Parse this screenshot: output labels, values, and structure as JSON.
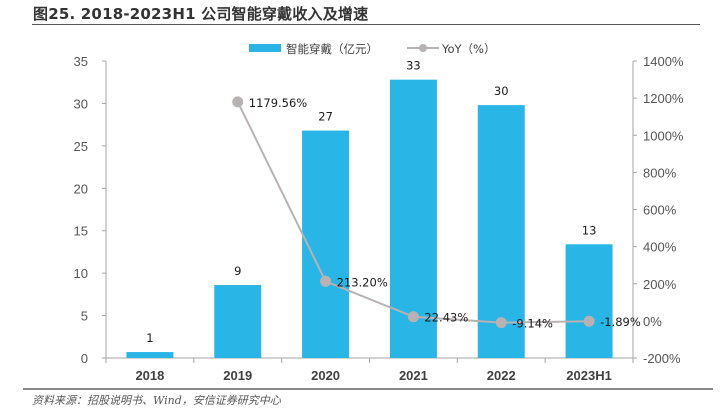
{
  "title": "图25. 2018-2023H1 公司智能穿戴收入及增速",
  "source": "资料来源：招股说明书、Wind，安信证券研究中心",
  "colors": {
    "bar": "#29B6E6",
    "line": "#B8B2B2",
    "axis": "#A6A6A6"
  },
  "chart_data": {
    "type": "bar",
    "title": "2018-2023H1 公司智能穿戴收入及增速",
    "categories": [
      "2018",
      "2019",
      "2020",
      "2021",
      "2022",
      "2023H1"
    ],
    "series": [
      {
        "name": "智能穿戴（亿元）",
        "type": "bar",
        "axis": "left",
        "values": [
          0.7,
          8.6,
          26.8,
          32.8,
          29.8,
          13.4
        ],
        "labels": [
          "1",
          "9",
          "27",
          "33",
          "30",
          "13"
        ]
      },
      {
        "name": "YoY（%）",
        "type": "line",
        "axis": "right",
        "values": [
          null,
          1179.56,
          213.2,
          22.43,
          -9.14,
          -1.89
        ],
        "labels": [
          "",
          "1179.56%",
          "213.20%",
          "22.43%",
          "-9.14%",
          "-1.89%"
        ]
      }
    ],
    "left_axis": {
      "ylim": [
        0,
        35
      ],
      "ticks": [
        0,
        5,
        10,
        15,
        20,
        25,
        30,
        35
      ],
      "tick_labels": [
        "0",
        "5",
        "10",
        "15",
        "20",
        "25",
        "30",
        "35"
      ]
    },
    "right_axis": {
      "ylim": [
        -200,
        1400
      ],
      "ticks": [
        -200,
        0,
        200,
        400,
        600,
        800,
        1000,
        1200,
        1400
      ],
      "tick_labels": [
        "-200%",
        "0%",
        "200%",
        "400%",
        "600%",
        "800%",
        "1000%",
        "1200%",
        "1400%"
      ]
    },
    "xlabel": "",
    "ylabel": "",
    "grid": false,
    "legend": {
      "placement": "top-center",
      "entries": [
        "智能穿戴（亿元）",
        "YoY（%）"
      ]
    }
  }
}
